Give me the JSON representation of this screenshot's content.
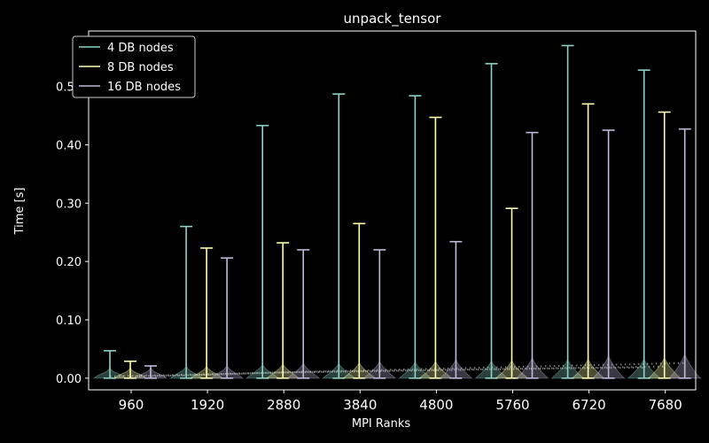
{
  "chart_data": {
    "type": "violin",
    "title": "unpack_tensor",
    "xlabel": "MPI Ranks",
    "ylabel": "Time [s]",
    "ylim": [
      -0.02,
      0.595
    ],
    "yticks": [
      0.0,
      0.1,
      0.2,
      0.3,
      0.4,
      0.5
    ],
    "ytick_labels": [
      "0.00",
      "0.10",
      "0.20",
      "0.30",
      "0.40",
      "0.50"
    ],
    "categories": [
      "960",
      "1920",
      "2880",
      "3840",
      "4800",
      "5760",
      "6720",
      "7680"
    ],
    "legend_position": "upper-left",
    "series": [
      {
        "name": "4 DB nodes",
        "color": "#8dd3c7",
        "max": [
          0.047,
          0.26,
          0.433,
          0.487,
          0.484,
          0.539,
          0.57,
          0.528
        ],
        "min": [
          0.0,
          0.0,
          0.0,
          0.0,
          0.0,
          0.0,
          0.0,
          0.0
        ],
        "mean": [
          0.003,
          0.006,
          0.009,
          0.011,
          0.013,
          0.015,
          0.017,
          0.018
        ]
      },
      {
        "name": "8 DB nodes",
        "color": "#ffffb3",
        "max": [
          0.029,
          0.223,
          0.232,
          0.265,
          0.447,
          0.291,
          0.47,
          0.456
        ],
        "min": [
          0.0,
          0.0,
          0.0,
          0.0,
          0.0,
          0.0,
          0.0,
          0.0
        ],
        "mean": [
          0.003,
          0.006,
          0.01,
          0.012,
          0.014,
          0.016,
          0.018,
          0.02
        ]
      },
      {
        "name": "16 DB nodes",
        "color": "#bebada",
        "max": [
          0.021,
          0.206,
          0.22,
          0.22,
          0.234,
          0.421,
          0.425,
          0.427
        ],
        "min": [
          0.0,
          0.0,
          0.0,
          0.0,
          0.0,
          0.0,
          0.0,
          0.0
        ],
        "mean": [
          0.003,
          0.007,
          0.011,
          0.014,
          0.017,
          0.02,
          0.023,
          0.026
        ]
      }
    ]
  }
}
